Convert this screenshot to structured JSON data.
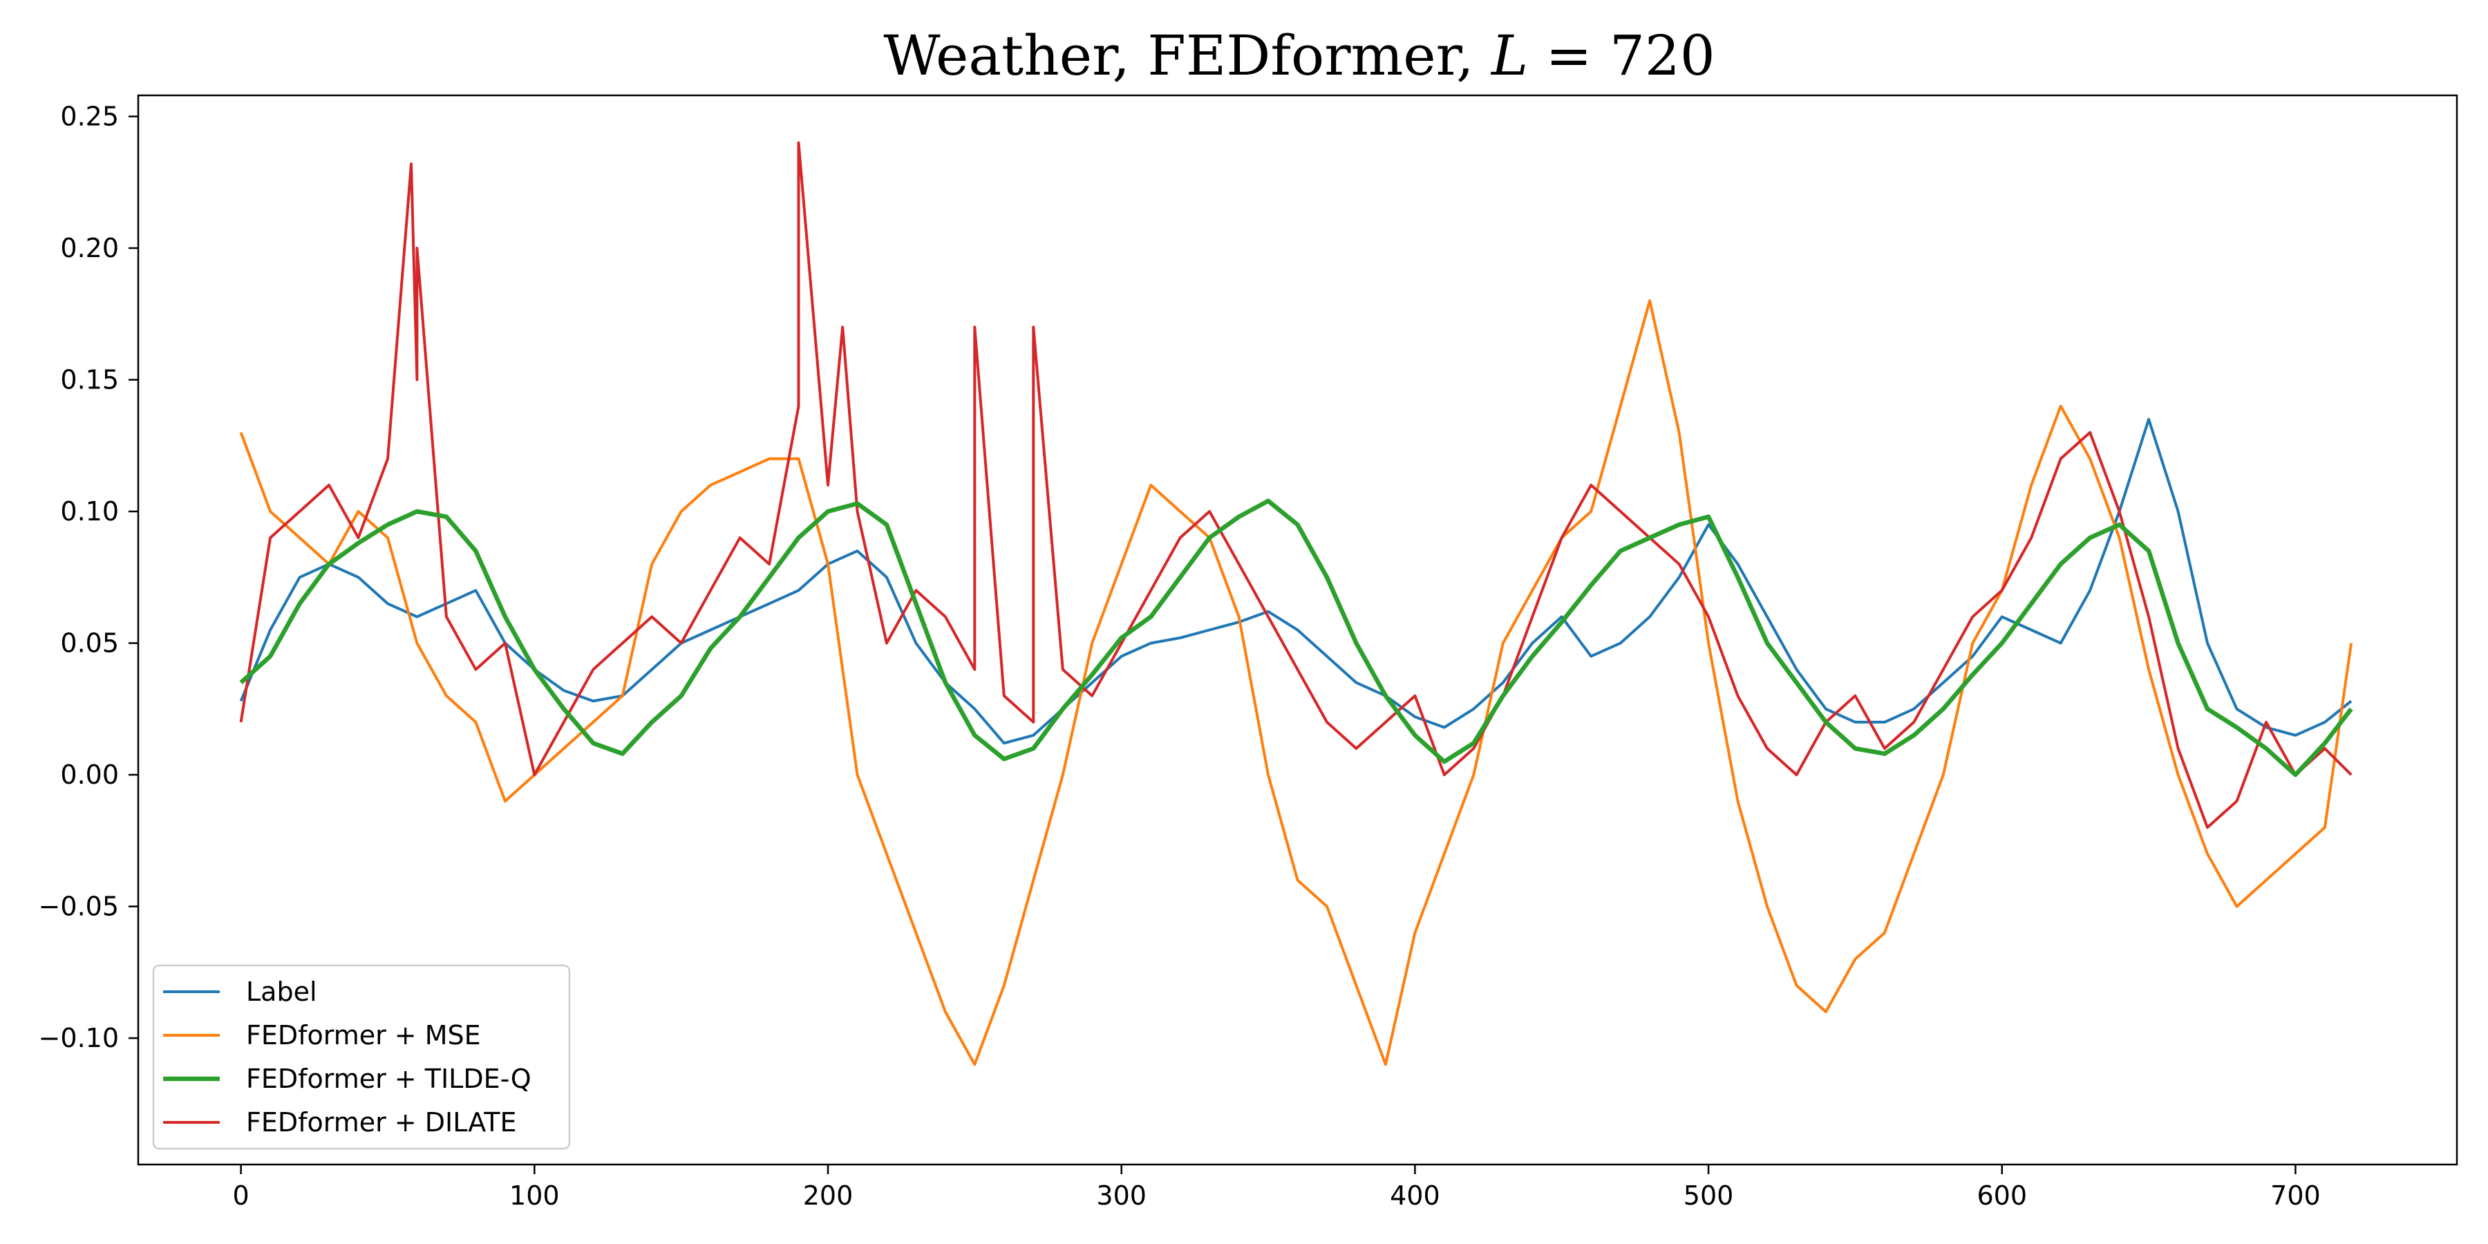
{
  "chart_data": {
    "type": "line",
    "title": "Weather, FEDformer, L = 720",
    "title_parts": {
      "prefix": "Weather, FEDformer, ",
      "symbol": "L",
      "suffix": " = 720"
    },
    "xlabel": "",
    "ylabel": "",
    "xlim": [
      -35,
      755
    ],
    "ylim": [
      -0.148,
      0.258
    ],
    "xticks": [
      0,
      100,
      200,
      300,
      400,
      500,
      600,
      700
    ],
    "xtick_labels": [
      "0",
      "100",
      "200",
      "300",
      "400",
      "500",
      "600",
      "700"
    ],
    "yticks": [
      -0.1,
      -0.05,
      0.0,
      0.05,
      0.1,
      0.15,
      0.2,
      0.25
    ],
    "ytick_labels": [
      "−0.10",
      "−0.05",
      "0.00",
      "0.05",
      "0.10",
      "0.15",
      "0.20",
      "0.25"
    ],
    "grid": false,
    "legend_position": "lower-left",
    "series": [
      {
        "name": "Label",
        "color": "#1f77b4",
        "x": [
          0,
          10,
          20,
          30,
          40,
          50,
          60,
          70,
          80,
          90,
          100,
          110,
          120,
          130,
          140,
          150,
          160,
          170,
          180,
          190,
          200,
          210,
          220,
          230,
          240,
          250,
          260,
          270,
          280,
          290,
          300,
          310,
          320,
          330,
          340,
          350,
          360,
          370,
          380,
          390,
          400,
          410,
          420,
          430,
          440,
          450,
          460,
          470,
          480,
          490,
          500,
          510,
          520,
          530,
          540,
          550,
          560,
          570,
          580,
          590,
          600,
          610,
          620,
          630,
          640,
          650,
          660,
          670,
          680,
          690,
          700,
          710,
          719
        ],
        "y": [
          0.028,
          0.055,
          0.075,
          0.08,
          0.075,
          0.065,
          0.06,
          0.065,
          0.07,
          0.05,
          0.04,
          0.032,
          0.028,
          0.03,
          0.04,
          0.05,
          0.055,
          0.06,
          0.065,
          0.07,
          0.08,
          0.085,
          0.075,
          0.05,
          0.035,
          0.025,
          0.012,
          0.015,
          0.025,
          0.035,
          0.045,
          0.05,
          0.052,
          0.055,
          0.058,
          0.062,
          0.055,
          0.045,
          0.035,
          0.03,
          0.022,
          0.018,
          0.025,
          0.035,
          0.05,
          0.06,
          0.045,
          0.05,
          0.06,
          0.075,
          0.095,
          0.08,
          0.06,
          0.04,
          0.025,
          0.02,
          0.02,
          0.025,
          0.035,
          0.045,
          0.06,
          0.055,
          0.05,
          0.07,
          0.1,
          0.135,
          0.1,
          0.05,
          0.025,
          0.018,
          0.015,
          0.02,
          0.028
        ]
      },
      {
        "name": "FEDformer + MSE",
        "color": "#ff7f0e",
        "x": [
          0,
          10,
          20,
          30,
          40,
          50,
          60,
          70,
          80,
          90,
          100,
          110,
          120,
          130,
          140,
          150,
          160,
          170,
          180,
          190,
          200,
          210,
          220,
          230,
          240,
          250,
          260,
          270,
          280,
          290,
          300,
          310,
          320,
          330,
          340,
          350,
          360,
          370,
          380,
          390,
          400,
          410,
          420,
          430,
          440,
          450,
          460,
          470,
          480,
          490,
          500,
          510,
          520,
          530,
          540,
          550,
          560,
          570,
          580,
          590,
          600,
          610,
          620,
          630,
          640,
          650,
          660,
          670,
          680,
          690,
          700,
          710,
          719
        ],
        "y": [
          0.13,
          0.1,
          0.09,
          0.08,
          0.1,
          0.09,
          0.05,
          0.03,
          0.02,
          -0.01,
          0.0,
          0.01,
          0.02,
          0.03,
          0.08,
          0.1,
          0.11,
          0.115,
          0.12,
          0.12,
          0.08,
          0.0,
          -0.03,
          -0.06,
          -0.09,
          -0.11,
          -0.08,
          -0.04,
          0.0,
          0.05,
          0.08,
          0.11,
          0.1,
          0.09,
          0.06,
          0.0,
          -0.04,
          -0.05,
          -0.08,
          -0.11,
          -0.06,
          -0.03,
          0.0,
          0.05,
          0.07,
          0.09,
          0.1,
          0.14,
          0.18,
          0.13,
          0.05,
          -0.01,
          -0.05,
          -0.08,
          -0.09,
          -0.07,
          -0.06,
          -0.03,
          0.0,
          0.05,
          0.07,
          0.11,
          0.14,
          0.12,
          0.09,
          0.04,
          0.0,
          -0.03,
          -0.05,
          -0.04,
          -0.03,
          -0.02,
          0.05
        ]
      },
      {
        "name": "FEDformer + TILDE-Q",
        "color": "#2ca02c",
        "x": [
          0,
          10,
          20,
          30,
          40,
          50,
          60,
          70,
          80,
          90,
          100,
          110,
          120,
          130,
          140,
          150,
          160,
          170,
          180,
          190,
          200,
          210,
          220,
          230,
          240,
          250,
          260,
          270,
          280,
          290,
          300,
          310,
          320,
          330,
          340,
          350,
          360,
          370,
          380,
          390,
          400,
          410,
          420,
          430,
          440,
          450,
          460,
          470,
          480,
          490,
          500,
          510,
          520,
          530,
          540,
          550,
          560,
          570,
          580,
          590,
          600,
          610,
          620,
          630,
          640,
          650,
          660,
          670,
          680,
          690,
          700,
          710,
          719
        ],
        "y": [
          0.035,
          0.045,
          0.065,
          0.08,
          0.088,
          0.095,
          0.1,
          0.098,
          0.085,
          0.06,
          0.04,
          0.025,
          0.012,
          0.008,
          0.02,
          0.03,
          0.048,
          0.06,
          0.075,
          0.09,
          0.1,
          0.103,
          0.095,
          0.065,
          0.035,
          0.015,
          0.006,
          0.01,
          0.025,
          0.038,
          0.052,
          0.06,
          0.075,
          0.09,
          0.098,
          0.104,
          0.095,
          0.075,
          0.05,
          0.03,
          0.015,
          0.005,
          0.012,
          0.03,
          0.045,
          0.058,
          0.072,
          0.085,
          0.09,
          0.095,
          0.098,
          0.075,
          0.05,
          0.035,
          0.02,
          0.01,
          0.008,
          0.015,
          0.025,
          0.038,
          0.05,
          0.065,
          0.08,
          0.09,
          0.095,
          0.085,
          0.05,
          0.025,
          0.018,
          0.01,
          0.0,
          0.012,
          0.025
        ]
      },
      {
        "name": "FEDformer + DILATE",
        "color": "#d62728",
        "x": [
          0,
          10,
          20,
          30,
          40,
          50,
          60,
          70,
          80,
          90,
          100,
          110,
          120,
          130,
          140,
          150,
          160,
          170,
          180,
          190,
          200,
          210,
          220,
          230,
          240,
          250,
          260,
          270,
          280,
          290,
          300,
          310,
          320,
          330,
          340,
          350,
          360,
          370,
          380,
          390,
          400,
          410,
          420,
          430,
          440,
          450,
          460,
          470,
          480,
          490,
          500,
          510,
          520,
          530,
          540,
          550,
          560,
          570,
          580,
          590,
          600,
          610,
          620,
          630,
          640,
          650,
          660,
          670,
          680,
          690,
          700,
          710,
          719
        ],
        "y": [
          0.02,
          0.09,
          0.1,
          0.11,
          0.09,
          0.12,
          0.15,
          0.06,
          0.04,
          0.05,
          0.0,
          0.02,
          0.04,
          0.05,
          0.06,
          0.05,
          0.07,
          0.09,
          0.08,
          0.14,
          0.11,
          0.1,
          0.05,
          0.07,
          0.06,
          0.04,
          0.03,
          0.02,
          0.04,
          0.03,
          0.05,
          0.07,
          0.09,
          0.1,
          0.08,
          0.06,
          0.04,
          0.02,
          0.01,
          0.02,
          0.03,
          0.0,
          0.01,
          0.03,
          0.06,
          0.09,
          0.11,
          0.1,
          0.09,
          0.08,
          0.06,
          0.03,
          0.01,
          0.0,
          0.02,
          0.03,
          0.01,
          0.02,
          0.04,
          0.06,
          0.07,
          0.09,
          0.12,
          0.13,
          0.1,
          0.06,
          0.01,
          -0.02,
          -0.01,
          0.02,
          0.0,
          0.01,
          0.0
        ],
        "peak_x": [
          58,
          60,
          190,
          205,
          250,
          270
        ],
        "peak_y": [
          0.232,
          0.2,
          0.24,
          0.17,
          0.17,
          0.17
        ]
      }
    ]
  }
}
